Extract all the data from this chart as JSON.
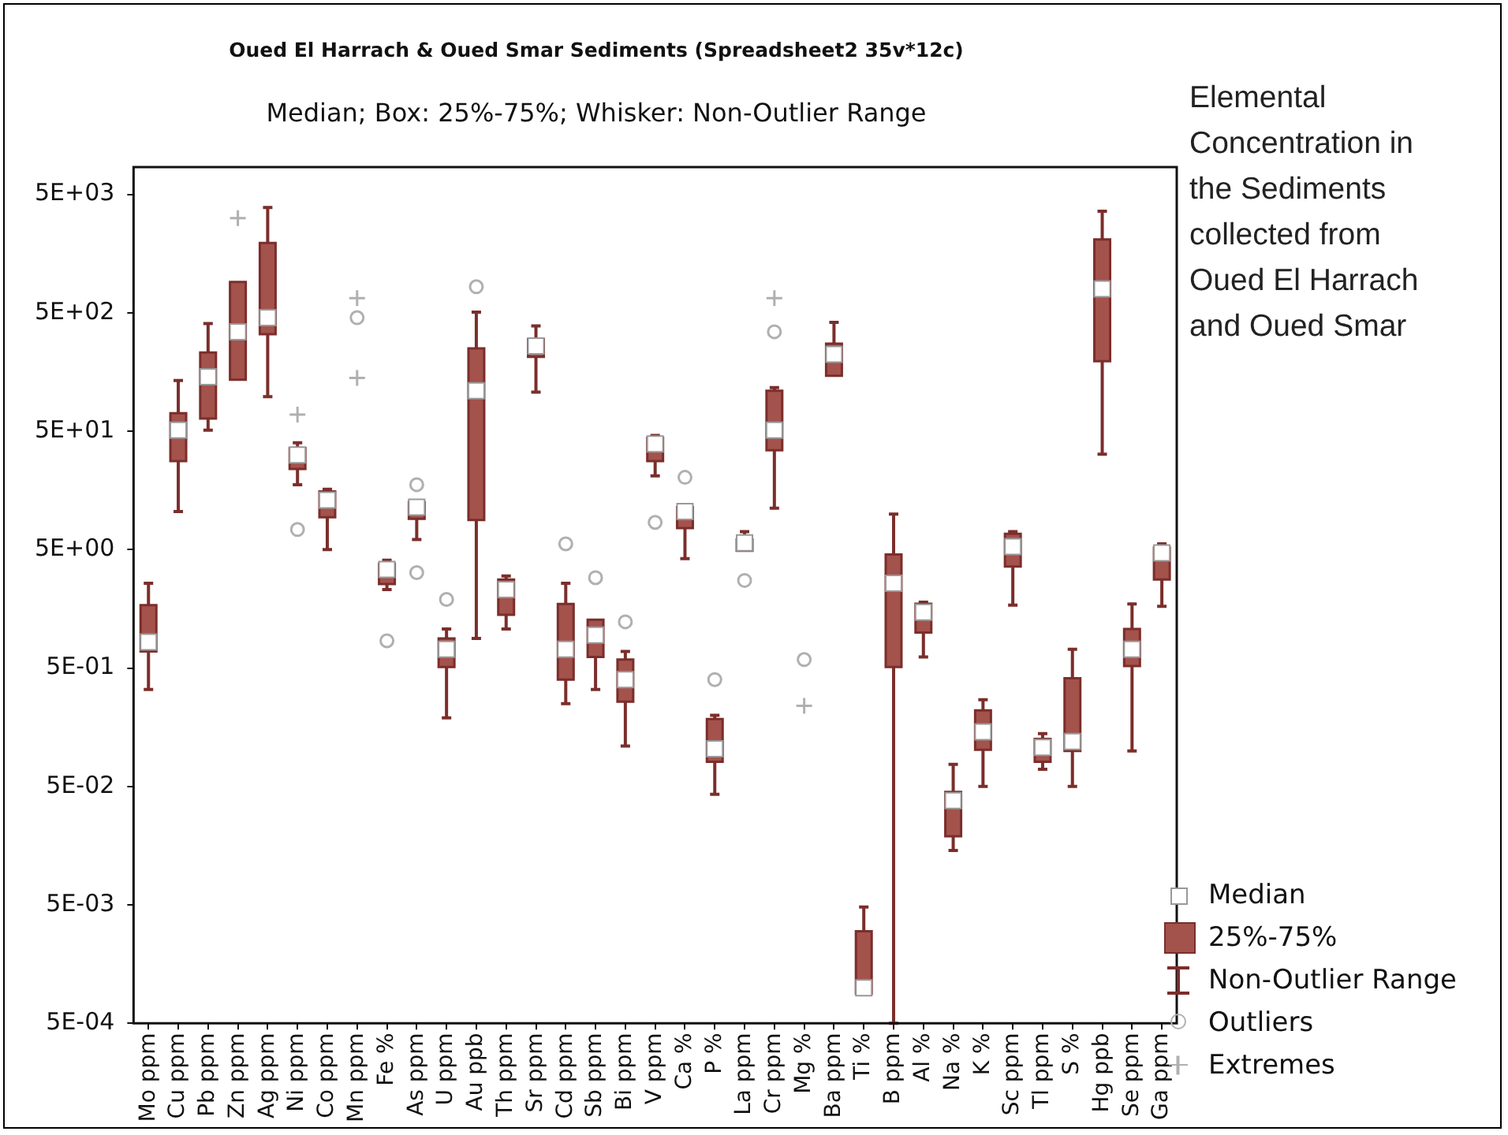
{
  "chart_data": {
    "type": "box",
    "title": "Oued El Harrach & Oued Smar Sediments (Spreadsheet2 35v*12c)",
    "subtitle": "Median; Box: 25%-75%; Whisker: Non-Outlier Range",
    "categories": [
      "Mo ppm",
      "Cu ppm",
      "Pb ppm",
      "Zn ppm",
      "Ag ppm",
      "Ni ppm",
      "Co ppm",
      "Mn ppm",
      "Fe %",
      "As ppm",
      "U ppm",
      "Au ppb",
      "Th ppm",
      "Sr ppm",
      "Cd ppm",
      "Sb ppm",
      "Bi ppm",
      "V ppm",
      "Ca %",
      "P %",
      "La ppm",
      "Cr ppm",
      "Mg %",
      "Ba ppm",
      "Ti %",
      "B ppm",
      "Al %",
      "Na %",
      "K %",
      "Sc ppm",
      "Tl ppm",
      "S %",
      "Hg ppb",
      "Se ppm",
      "Ga ppm"
    ],
    "log": true,
    "ylim": [
      0.0005,
      8500
    ],
    "yticks": [
      {
        "value": 5000,
        "label": "5E+03"
      },
      {
        "value": 500,
        "label": "5E+02"
      },
      {
        "value": 50,
        "label": "5E+01"
      },
      {
        "value": 5,
        "label": "5E+00"
      },
      {
        "value": 0.5,
        "label": "5E-01"
      },
      {
        "value": 0.05,
        "label": "5E-02"
      },
      {
        "value": 0.005,
        "label": "5E-03"
      },
      {
        "value": 0.0005,
        "label": "5E-04"
      }
    ],
    "legend": "bottom right",
    "annotations": [
      "Elemental Concentration in the Sediments collected from Oued El Harrach and Oued Smar",
      "Median",
      "Non-Outlier Range"
    ],
    "series": [
      {
        "name": "25%-75%",
        "color": "#a4524c",
        "boxes": [
          {
            "low": 0.33,
            "q1": 0.69,
            "median": 0.83,
            "q3": 1.7,
            "high": 2.6
          },
          {
            "low": 10.5,
            "q1": 28,
            "median": 51,
            "q3": 71,
            "high": 134
          },
          {
            "low": 51,
            "q1": 64,
            "median": 144,
            "q3": 231,
            "high": 406
          },
          {
            "low": 136,
            "q1": 136,
            "median": 346,
            "q3": 910,
            "high": 910
          },
          {
            "low": 98,
            "q1": 330,
            "median": 455,
            "q3": 1945,
            "high": 3880
          },
          {
            "low": 17.7,
            "q1": 24,
            "median": 31.5,
            "q3": 36,
            "high": 40
          },
          {
            "low": 5.0,
            "q1": 9.4,
            "median": 13.1,
            "q3": 15.5,
            "high": 16.2
          },
          null,
          {
            "low": 2.3,
            "q1": 2.56,
            "median": 3.4,
            "q3": 3.8,
            "high": 4.07
          },
          {
            "low": 6.1,
            "q1": 9.1,
            "median": 11.4,
            "q3": 12.6,
            "high": 12.6
          },
          {
            "low": 0.19,
            "q1": 0.51,
            "median": 0.72,
            "q3": 0.89,
            "high": 1.07
          },
          {
            "low": 0.89,
            "q1": 8.9,
            "median": 110,
            "q3": 250,
            "high": 506
          },
          {
            "low": 1.07,
            "q1": 1.41,
            "median": 2.3,
            "q3": 2.8,
            "high": 3.0
          },
          {
            "low": 107,
            "q1": 212,
            "median": 262,
            "q3": 300,
            "high": 388
          },
          {
            "low": 0.25,
            "q1": 0.4,
            "median": 0.72,
            "q3": 1.74,
            "high": 2.6
          },
          {
            "low": 0.33,
            "q1": 0.62,
            "median": 0.95,
            "q3": 1.28,
            "high": 1.28
          },
          {
            "low": 0.11,
            "q1": 0.26,
            "median": 0.4,
            "q3": 0.59,
            "high": 0.69
          },
          {
            "low": 21,
            "q1": 28,
            "median": 39,
            "q3": 44,
            "high": 46
          },
          {
            "low": 4.2,
            "q1": 7.6,
            "median": 10.5,
            "q3": 11.4,
            "high": 11.4
          },
          {
            "low": 0.043,
            "q1": 0.081,
            "median": 0.104,
            "q3": 0.186,
            "high": 0.2
          },
          {
            "low": 4.9,
            "q1": 4.9,
            "median": 5.7,
            "q3": 6.1,
            "high": 7.1
          },
          {
            "low": 11.2,
            "q1": 34.6,
            "median": 51,
            "q3": 110,
            "high": 117
          },
          null,
          {
            "low": 147,
            "q1": 147,
            "median": 223,
            "q3": 275,
            "high": 416
          },
          {
            "low": 0.00089,
            "q1": 0.00089,
            "median": 0.001,
            "q3": 0.003,
            "high": 0.0048
          },
          {
            "low": 0.0005,
            "q1": 0.51,
            "median": 2.6,
            "q3": 4.55,
            "high": 10
          },
          {
            "low": 0.62,
            "q1": 1.0,
            "median": 1.48,
            "q3": 1.75,
            "high": 1.8
          },
          {
            "low": 0.0144,
            "q1": 0.019,
            "median": 0.038,
            "q3": 0.045,
            "high": 0.077
          },
          {
            "low": 0.05,
            "q1": 0.102,
            "median": 0.145,
            "q3": 0.22,
            "high": 0.27
          },
          {
            "low": 1.7,
            "q1": 3.6,
            "median": 5.3,
            "q3": 6.8,
            "high": 7.1
          },
          {
            "low": 0.07,
            "q1": 0.081,
            "median": 0.107,
            "q3": 0.126,
            "high": 0.14
          },
          {
            "low": 0.05,
            "q1": 0.1,
            "median": 0.12,
            "q3": 0.41,
            "high": 0.72
          },
          {
            "low": 32,
            "q1": 195,
            "median": 795,
            "q3": 2085,
            "high": 3600
          },
          {
            "low": 0.1,
            "q1": 0.52,
            "median": 0.72,
            "q3": 1.07,
            "high": 1.74
          },
          {
            "low": 1.66,
            "q1": 2.8,
            "median": 4.7,
            "q3": 5.2,
            "high": 5.6
          }
        ]
      },
      {
        "type": "scatter",
        "name": "Outliers",
        "color": "#b0b0b0",
        "marker": "circle",
        "x": [
          "Ni ppm",
          "Mn ppm",
          "Fe %",
          "As ppm",
          "As ppm",
          "U ppm",
          "Au ppb",
          "Cd ppm",
          "Sb ppm",
          "Bi ppm",
          "V ppm",
          "Ca %",
          "P %",
          "La ppm",
          "Cr ppm",
          "Mg %"
        ],
        "values": [
          7.4,
          455,
          0.85,
          17.7,
          3.2,
          1.9,
          830,
          5.6,
          2.9,
          1.23,
          8.5,
          20.4,
          0.4,
          2.75,
          346,
          0.59
        ]
      },
      {
        "type": "scatter",
        "name": "Extremes",
        "color": "#b0b0b0",
        "marker": "cross",
        "x": [
          "Zn ppm",
          "Ni ppm",
          "Mn ppm",
          "Mn ppm",
          "Cr ppm",
          "Mg %"
        ],
        "values": [
          3155,
          69,
          664,
          141,
          664,
          0.24
        ]
      }
    ]
  }
}
